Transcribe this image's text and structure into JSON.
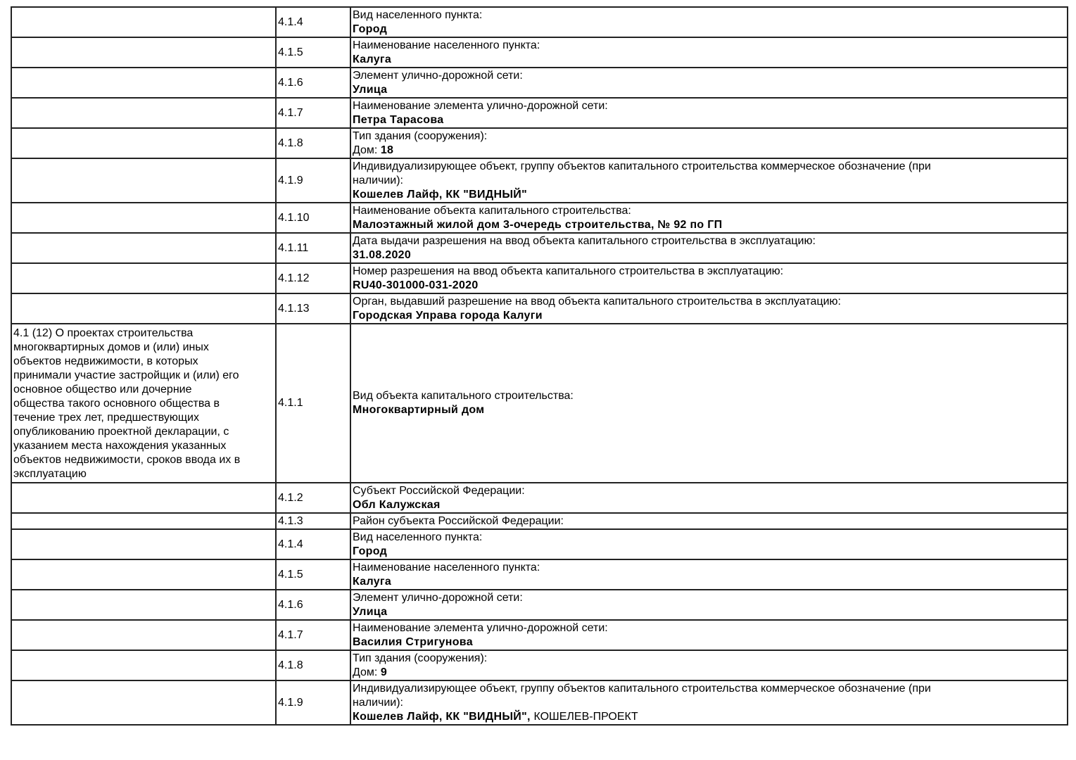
{
  "rows": [
    {
      "code": "4.1.4",
      "lines": [
        [
          {
            "t": "Вид населенного пункта:"
          }
        ],
        [
          {
            "t": "Город",
            "b": true
          }
        ]
      ]
    },
    {
      "code": "4.1.5",
      "lines": [
        [
          {
            "t": "Наименование населенного пункта:"
          }
        ],
        [
          {
            "t": "Калуга",
            "b": true
          }
        ]
      ]
    },
    {
      "code": "4.1.6",
      "lines": [
        [
          {
            "t": "Элемент улично-дорожной сети:"
          }
        ],
        [
          {
            "t": "Улица",
            "b": true
          }
        ]
      ]
    },
    {
      "code": "4.1.7",
      "lines": [
        [
          {
            "t": "Наименование элемента улично-дорожной сети:"
          }
        ],
        [
          {
            "t": "Петра Тарасова",
            "b": true
          }
        ]
      ]
    },
    {
      "code": "4.1.8",
      "lines": [
        [
          {
            "t": "Тип здания (сооружения):"
          }
        ],
        [
          {
            "t": "Дом: "
          },
          {
            "t": "18",
            "b": true
          }
        ]
      ]
    },
    {
      "code": "4.1.9",
      "lines": [
        [
          {
            "t": "Индивидуализирующее объект, группу объектов капитального строительства коммерческое обозначение (при"
          }
        ],
        [
          {
            "t": "наличии):"
          }
        ],
        [
          {
            "t": "Кошелев Лайф, КК \"ВИДНЫЙ\"",
            "b": true
          }
        ]
      ]
    },
    {
      "code": "4.1.10",
      "lines": [
        [
          {
            "t": "Наименование объекта капитального строительства:"
          }
        ],
        [
          {
            "t": "Малоэтажный жилой дом 3-очередь строительства, № 92 по ГП",
            "b": true
          }
        ]
      ]
    },
    {
      "code": "4.1.11",
      "lines": [
        [
          {
            "t": "Дата выдачи разрешения на ввод объекта капитального строительства в эксплуатацию:"
          }
        ],
        [
          {
            "t": "31.08.2020",
            "b": true
          }
        ]
      ]
    },
    {
      "code": "4.1.12",
      "lines": [
        [
          {
            "t": "Номер разрешения на ввод объекта капитального строительства в эксплуатацию:"
          }
        ],
        [
          {
            "t": "RU40-301000-031-2020",
            "b": true
          }
        ]
      ]
    },
    {
      "code": "4.1.13",
      "lines": [
        [
          {
            "t": "Орган, выдавший разрешение на ввод объекта капитального строительства в эксплуатацию:"
          }
        ],
        [
          {
            "t": "Городская Управа города Калуги",
            "b": true
          }
        ]
      ]
    },
    {
      "label": [
        "4.1 (12) О проектах строительства",
        "многоквартирных домов и (или) иных",
        "объектов недвижимости, в которых",
        "принимали участие застройщик и (или) его",
        "основное общество или дочерние",
        "общества такого основного общества в",
        "течение трех лет, предшествующих",
        "опубликованию проектной декларации, с",
        "указанием места нахождения указанных",
        "объектов недвижимости, сроков ввода их в",
        "эксплуатацию"
      ],
      "code": "4.1.1",
      "lines": [
        [
          {
            "t": "Вид объекта капитального строительства:"
          }
        ],
        [
          {
            "t": "Многоквартирный дом",
            "b": true
          }
        ]
      ]
    },
    {
      "code": "4.1.2",
      "lines": [
        [
          {
            "t": "Субъект Российской Федерации:"
          }
        ],
        [
          {
            "t": "Обл Калужская",
            "b": true
          }
        ]
      ]
    },
    {
      "code": "4.1.3",
      "lines": [
        [
          {
            "t": "Район субъекта Российской Федерации:"
          }
        ]
      ]
    },
    {
      "code": "4.1.4",
      "lines": [
        [
          {
            "t": "Вид населенного пункта:"
          }
        ],
        [
          {
            "t": "Город",
            "b": true
          }
        ]
      ]
    },
    {
      "code": "4.1.5",
      "lines": [
        [
          {
            "t": "Наименование населенного пункта:"
          }
        ],
        [
          {
            "t": "Калуга",
            "b": true
          }
        ]
      ]
    },
    {
      "code": "4.1.6",
      "lines": [
        [
          {
            "t": "Элемент улично-дорожной сети:"
          }
        ],
        [
          {
            "t": "Улица",
            "b": true
          }
        ]
      ]
    },
    {
      "code": "4.1.7",
      "lines": [
        [
          {
            "t": "Наименование элемента улично-дорожной сети:"
          }
        ],
        [
          {
            "t": "Василия Стригунова",
            "b": true
          }
        ]
      ]
    },
    {
      "code": "4.1.8",
      "lines": [
        [
          {
            "t": "Тип здания (сооружения):"
          }
        ],
        [
          {
            "t": "Дом: "
          },
          {
            "t": "9",
            "b": true
          }
        ]
      ]
    },
    {
      "code": "4.1.9",
      "lines": [
        [
          {
            "t": "Индивидуализирующее объект, группу объектов капитального строительства коммерческое обозначение (при"
          }
        ],
        [
          {
            "t": "наличии):"
          }
        ],
        [
          {
            "t": "Кошелев Лайф, КК \"ВИДНЫЙ\", ",
            "b": true
          },
          {
            "t": "КОШЕЛЕВ-ПРОЕКТ"
          }
        ]
      ]
    }
  ]
}
